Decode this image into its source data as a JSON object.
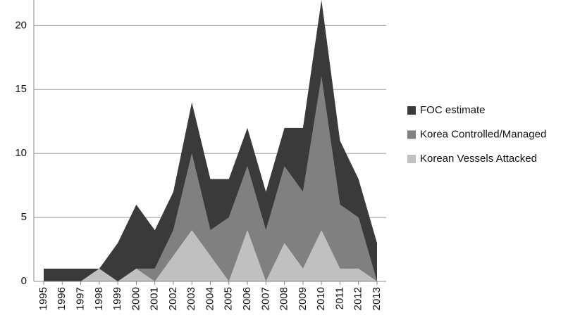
{
  "chart_data": {
    "type": "area",
    "stacked": true,
    "categories": [
      "1995",
      "1996",
      "1997",
      "1998",
      "1999",
      "2000",
      "2001",
      "2002",
      "2003",
      "2004",
      "2005",
      "2006",
      "2007",
      "2008",
      "2009",
      "2010",
      "2011",
      "2012",
      "2013"
    ],
    "series": [
      {
        "name": "Korean Vessels Attacked",
        "color": "#c0c0c0",
        "values": [
          0,
          0,
          0,
          1,
          0,
          1,
          0,
          2,
          4,
          2,
          0,
          4,
          0,
          3,
          1,
          4,
          1,
          1,
          0
        ]
      },
      {
        "name": "Korea Controlled/Managed",
        "color": "#808080",
        "values": [
          0,
          0,
          0,
          0,
          0,
          0,
          1,
          2,
          6,
          2,
          5,
          5,
          4,
          6,
          6,
          12,
          5,
          4,
          0
        ]
      },
      {
        "name": "FOC estimate",
        "color": "#3a3a3a",
        "values": [
          1,
          1,
          1,
          0,
          3,
          5,
          3,
          3,
          4,
          4,
          3,
          3,
          3,
          3,
          5,
          6,
          5,
          3,
          3
        ]
      }
    ],
    "ylim": [
      0,
      22
    ],
    "yticks": [
      0,
      5,
      10,
      15,
      20
    ],
    "grid": true,
    "legend": "right"
  }
}
